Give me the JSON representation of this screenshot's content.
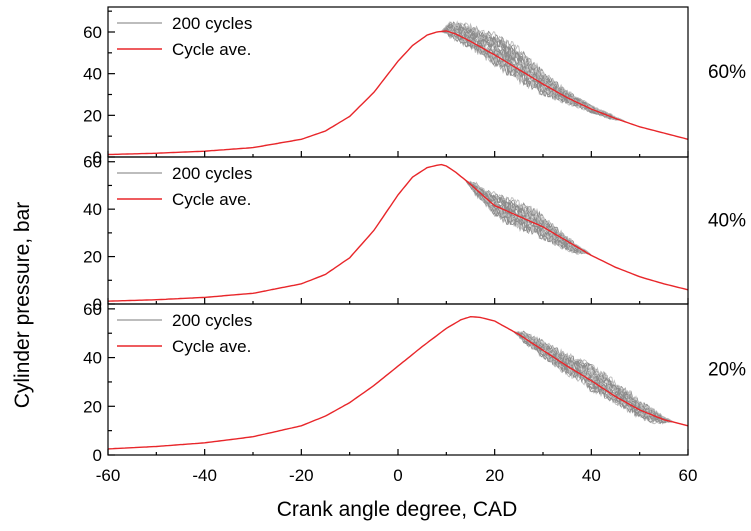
{
  "chart_data": {
    "type": "line",
    "xlabel": "Crank angle degree, CAD",
    "ylabel": "Cylinder pressure, bar",
    "xlim": [
      -60,
      60
    ],
    "x_ticks": [
      -60,
      -40,
      -20,
      0,
      20,
      40,
      60
    ],
    "legend_placement": "top-left",
    "legend": [
      "200 cycles",
      "Cycle ave."
    ],
    "colors": {
      "cycles": "#8c8c8c",
      "cycles_light": "#bdbdbd",
      "average": "#e8262a"
    },
    "panels": [
      {
        "label": "60%",
        "ylim": [
          0,
          72
        ],
        "y_ticks": [
          0,
          20,
          40,
          60
        ],
        "series": [
          {
            "name": "Cycle ave.",
            "x": [
              -60,
              -50,
              -40,
              -30,
              -20,
              -15,
              -10,
              -5,
              0,
              3,
              6,
              8,
              10,
              12,
              15,
              20,
              25,
              30,
              35,
              40,
              45,
              50,
              55,
              60
            ],
            "y": [
              1.2,
              1.8,
              2.8,
              4.5,
              8.5,
              12.5,
              19.5,
              31,
              46,
              53.5,
              58.5,
              60,
              60.5,
              59,
              55.5,
              49,
              42,
              35,
              28.5,
              23,
              18.5,
              14.5,
              11.5,
              8.5
            ]
          }
        ],
        "cycle_band": {
          "name": "200 cycles",
          "x": [
            10,
            12,
            15,
            18,
            20,
            22,
            25,
            28,
            30,
            35,
            40,
            45
          ],
          "upper": [
            65,
            64,
            62.5,
            60,
            58,
            55.5,
            51.5,
            45,
            40.5,
            31.5,
            24.5,
            19.5
          ],
          "lower": [
            58,
            56.5,
            52.5,
            48.5,
            45,
            41.5,
            37.5,
            33,
            30.5,
            26,
            21.5,
            17.5
          ]
        }
      },
      {
        "label": "40%",
        "ylim": [
          0,
          62
        ],
        "y_ticks": [
          0,
          20,
          40,
          60
        ],
        "series": [
          {
            "name": "Cycle ave.",
            "x": [
              -60,
              -50,
              -40,
              -30,
              -20,
              -15,
              -10,
              -5,
              0,
              3,
              6,
              8,
              9,
              10,
              12,
              15,
              18,
              20,
              25,
              30,
              35,
              40,
              45,
              50,
              55,
              60
            ],
            "y": [
              1.2,
              1.8,
              2.8,
              4.5,
              8.5,
              12.5,
              19.5,
              31,
              46,
              53.5,
              57.5,
              58.5,
              58.8,
              58.2,
              55.5,
              50.5,
              45,
              41.5,
              37,
              32.5,
              26.5,
              20.5,
              15.5,
              11.5,
              8.5,
              6
            ]
          }
        ],
        "cycle_band": {
          "name": "200 cycles",
          "x": [
            15,
            18,
            20,
            22,
            25,
            28,
            30,
            33,
            35,
            38
          ],
          "upper": [
            52.5,
            48,
            46,
            44.5,
            42.5,
            40,
            36.5,
            31.5,
            28,
            23.5
          ],
          "lower": [
            48,
            42.5,
            38,
            35,
            32.5,
            30,
            28,
            25,
            23,
            20.5
          ]
        }
      },
      {
        "label": "20%",
        "ylim": [
          0,
          62
        ],
        "y_ticks": [
          0,
          20,
          40,
          60
        ],
        "series": [
          {
            "name": "Cycle ave.",
            "x": [
              -60,
              -50,
              -40,
              -30,
              -20,
              -15,
              -10,
              -5,
              0,
              5,
              10,
              13,
              15,
              17,
              20,
              25,
              30,
              35,
              40,
              45,
              50,
              55,
              60
            ],
            "y": [
              2.5,
              3.5,
              5,
              7.5,
              12,
              16,
              21.5,
              28.5,
              36.5,
              44.5,
              52,
              55.5,
              56.8,
              56.5,
              55,
              49.5,
              43,
              36.5,
              30.5,
              24,
              18.5,
              14.5,
              12
            ]
          }
        ],
        "cycle_band": {
          "name": "200 cycles",
          "x": [
            25,
            30,
            35,
            38,
            40,
            43,
            45,
            48,
            50,
            53,
            55
          ],
          "upper": [
            51.5,
            46.5,
            41,
            38.5,
            36.5,
            32.5,
            29.5,
            25.5,
            22,
            18.5,
            16
          ],
          "lower": [
            48,
            40.5,
            33.5,
            30.5,
            27,
            24,
            21.5,
            18,
            15.5,
            13.5,
            12.5
          ]
        }
      }
    ]
  }
}
